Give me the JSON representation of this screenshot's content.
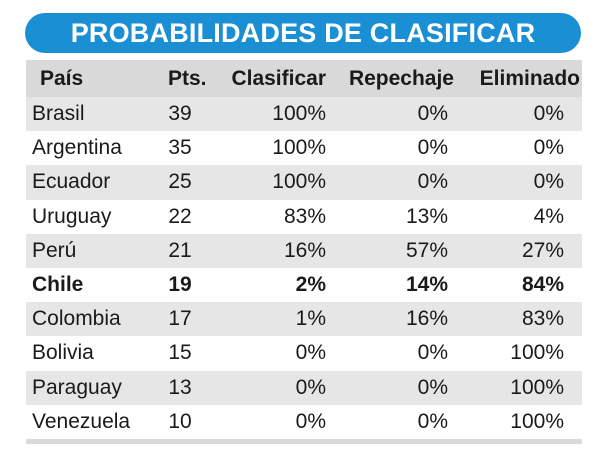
{
  "chart_data": {
    "type": "table",
    "title": "PROBABILIDADES DE CLASIFICAR",
    "columns": [
      "País",
      "Pts.",
      "Clasificar",
      "Repechaje",
      "Eliminado"
    ],
    "rows": [
      {
        "country": "Brasil",
        "pts": "39",
        "clasificar": "100%",
        "repechaje": "0%",
        "eliminado": "0%",
        "shaded": true,
        "bold": false
      },
      {
        "country": "Argentina",
        "pts": "35",
        "clasificar": "100%",
        "repechaje": "0%",
        "eliminado": "0%",
        "shaded": false,
        "bold": false
      },
      {
        "country": "Ecuador",
        "pts": "25",
        "clasificar": "100%",
        "repechaje": "0%",
        "eliminado": "0%",
        "shaded": true,
        "bold": false
      },
      {
        "country": "Uruguay",
        "pts": "22",
        "clasificar": "83%",
        "repechaje": "13%",
        "eliminado": "4%",
        "shaded": false,
        "bold": false
      },
      {
        "country": "Perú",
        "pts": "21",
        "clasificar": "16%",
        "repechaje": "57%",
        "eliminado": "27%",
        "shaded": true,
        "bold": false
      },
      {
        "country": "Chile",
        "pts": "19",
        "clasificar": "2%",
        "repechaje": "14%",
        "eliminado": "84%",
        "shaded": false,
        "bold": true
      },
      {
        "country": "Colombia",
        "pts": "17",
        "clasificar": "1%",
        "repechaje": "16%",
        "eliminado": "83%",
        "shaded": true,
        "bold": false
      },
      {
        "country": "Bolivia",
        "pts": "15",
        "clasificar": "0%",
        "repechaje": "0%",
        "eliminado": "100%",
        "shaded": false,
        "bold": false
      },
      {
        "country": "Paraguay",
        "pts": "13",
        "clasificar": "0%",
        "repechaje": "0%",
        "eliminado": "100%",
        "shaded": true,
        "bold": false
      },
      {
        "country": "Venezuela",
        "pts": "10",
        "clasificar": "0%",
        "repechaje": "0%",
        "eliminado": "100%",
        "shaded": false,
        "bold": false
      }
    ]
  },
  "colors": {
    "title_bg": "#1b8fd3",
    "title_text": "#ffffff",
    "header_bg": "#d9d9d9",
    "row_shade": "#e6e6e6",
    "text": "#1a1a1a"
  }
}
